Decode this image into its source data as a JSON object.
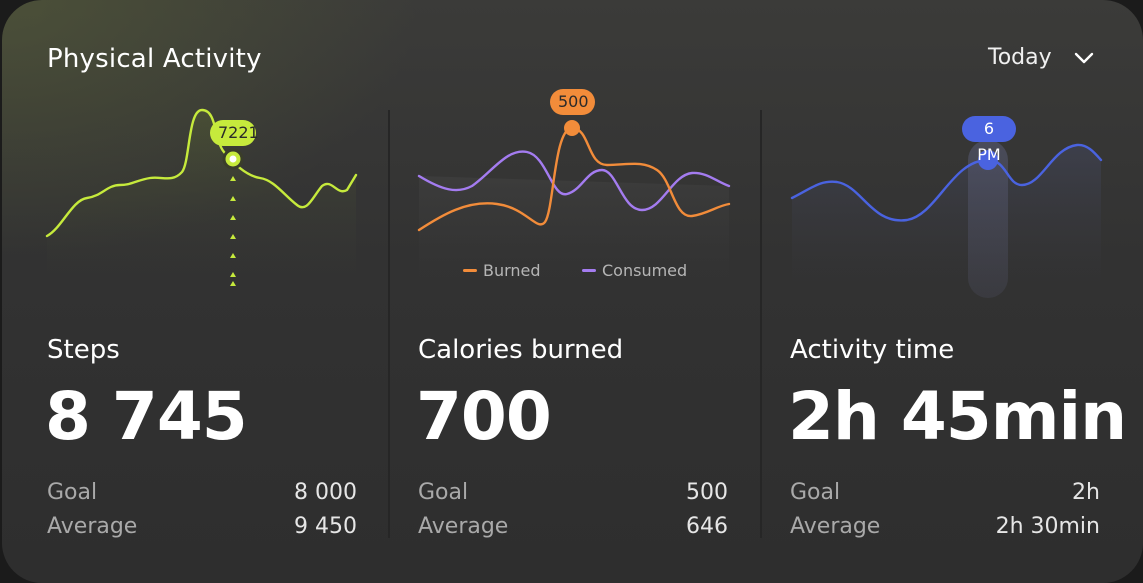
{
  "header": {
    "title": "Physical Activity",
    "period": "Today"
  },
  "colors": {
    "steps": "#c6ea3c",
    "burned": "#f28c3a",
    "consumed": "#a47cf0",
    "activity": "#4a63e0"
  },
  "steps": {
    "label": "Steps",
    "value": "8 745",
    "highlight": "7221",
    "goal_label": "Goal",
    "goal": "8 000",
    "average_label": "Average",
    "average": "9 450"
  },
  "calories": {
    "label": "Calories burned",
    "value": "700",
    "highlight": "500",
    "legend_burned": "Burned",
    "legend_consumed": "Consumed",
    "goal_label": "Goal",
    "goal": "500",
    "average_label": "Average",
    "average": "646"
  },
  "activity": {
    "label": "Activity time",
    "value": "2h 45min",
    "highlight": "6 PM",
    "goal_label": "Goal",
    "goal": "2h",
    "average_label": "Average",
    "average": "2h 30min"
  }
}
